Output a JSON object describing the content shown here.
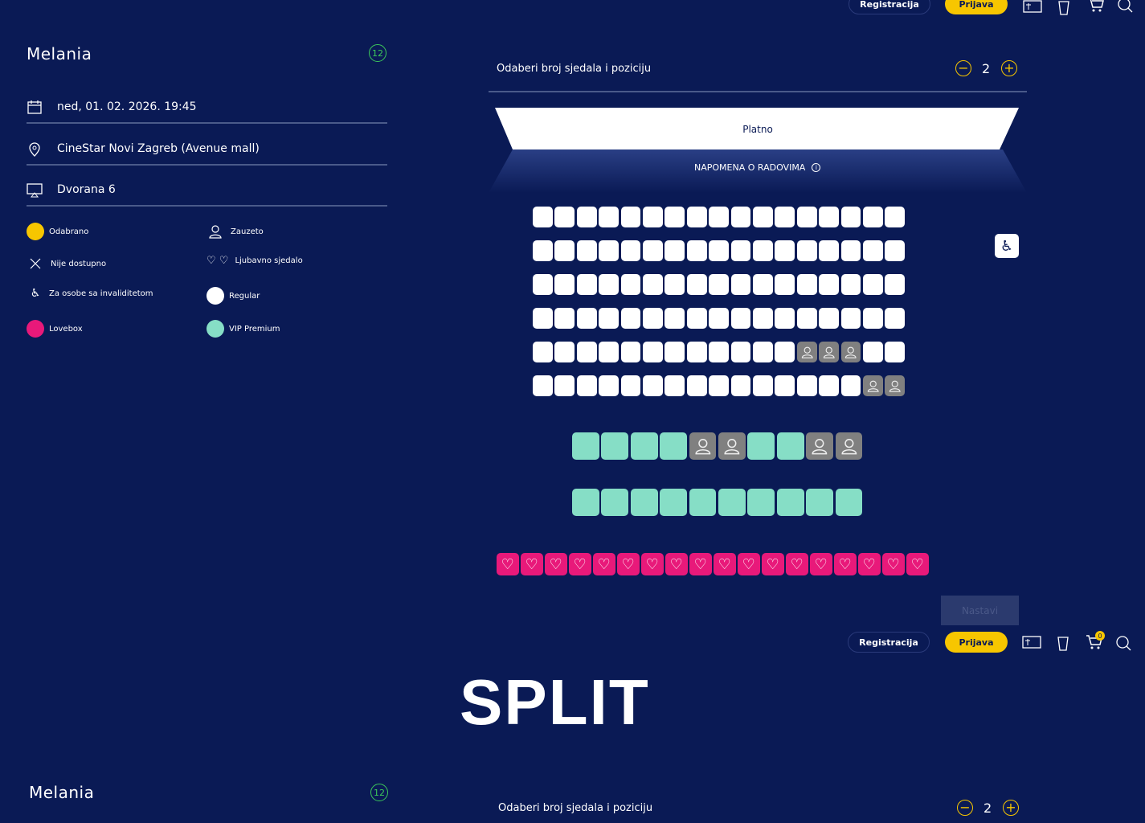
{
  "header": {
    "register": "Registracija",
    "login": "Prijava",
    "cart_count": "0"
  },
  "movie": {
    "title": "Melania",
    "age_rating": "12"
  },
  "details": {
    "date": "ned, 01. 02. 2026. 19:45",
    "cinema": "CineStar Novi Zagreb (Avenue mall)",
    "hall": "Dvorana 6"
  },
  "legend": [
    {
      "label": "Odabrano",
      "type": "dot",
      "color": "#f7c600"
    },
    {
      "label": "Zauzeto",
      "type": "person"
    },
    {
      "label": "Nije dostupno",
      "type": "x"
    },
    {
      "label": "Ljubavno sjedalo",
      "type": "hearts"
    },
    {
      "label": "Za osobe sa invaliditetom",
      "type": "wheelchair"
    },
    {
      "label": "Regular",
      "type": "dot",
      "color": "#ffffff"
    },
    {
      "label": "Lovebox",
      "type": "dot",
      "color": "#e8197a"
    },
    {
      "label": "VIP Premium",
      "type": "dot",
      "color": "#86dec6"
    }
  ],
  "seat_picker": {
    "label": "Odaberi broj sjedala i poziciju",
    "count": "2",
    "minus": "−",
    "plus": "+"
  },
  "screen": {
    "label": "Platno",
    "note": "NAPOMENA O RADOVIMA"
  },
  "seat_rows": [
    {
      "type": "regular",
      "seats": 17,
      "occupied": []
    },
    {
      "type": "regular",
      "seats": 17,
      "occupied": []
    },
    {
      "type": "regular",
      "seats": 17,
      "occupied": []
    },
    {
      "type": "regular",
      "seats": 17,
      "occupied": []
    },
    {
      "type": "regular",
      "seats": 17,
      "occupied": [
        13,
        14,
        15
      ]
    },
    {
      "type": "regular",
      "seats": 17,
      "occupied": [
        16,
        17
      ]
    },
    {
      "type": "vip",
      "seats": 10,
      "occupied": [
        5,
        6,
        9,
        10
      ]
    },
    {
      "type": "vip",
      "seats": 10,
      "occupied": []
    },
    {
      "type": "love",
      "seats": 18,
      "occupied": []
    }
  ],
  "continue_button": "Nastavi",
  "banner": "SPLIT",
  "second": {
    "title": "Melania",
    "age_rating": "12",
    "seat_label": "Odaberi broj sjedala i poziciju",
    "count": "2"
  },
  "colors": {
    "background": "#0a1a55",
    "accent": "#f7c600",
    "vip": "#86dec6",
    "lovebox": "#e8197a",
    "occupied": "#808080",
    "rating": "#3cc85a"
  }
}
